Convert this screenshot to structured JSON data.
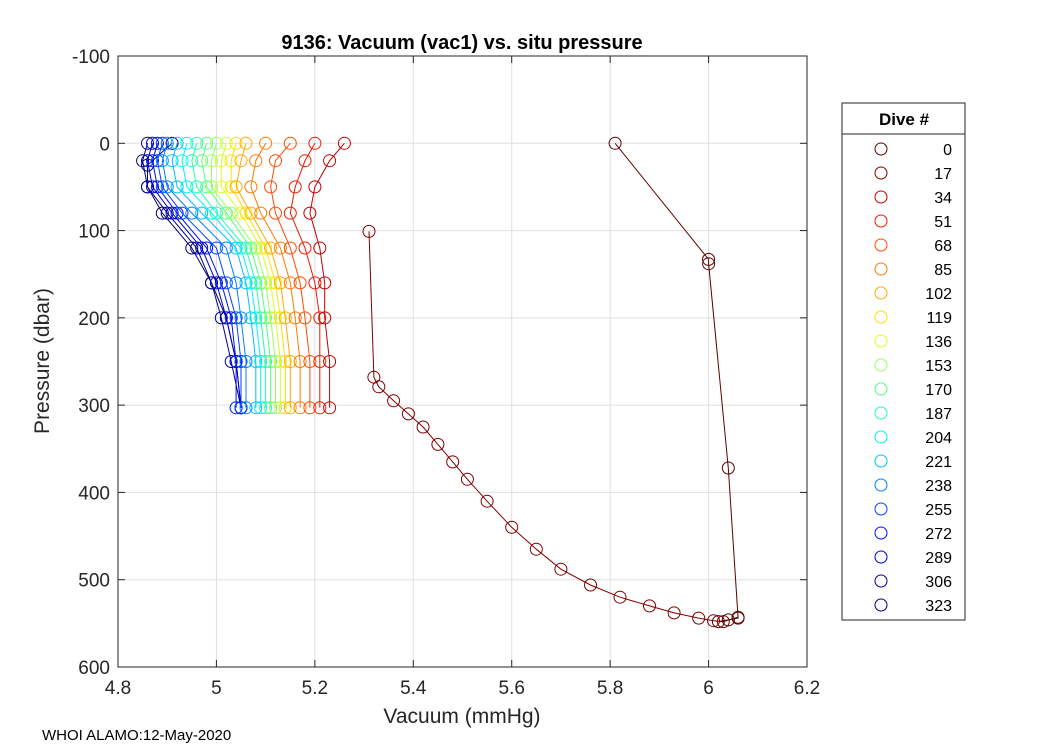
{
  "chart_data": {
    "type": "scatter",
    "title": "9136: Vacuum (vac1) vs. situ pressure",
    "xlabel": "Vacuum (mmHg)",
    "ylabel": "Pressure (dbar)",
    "xlim": [
      4.8,
      6.2
    ],
    "ylim": [
      -100,
      600
    ],
    "y_reversed": true,
    "grid": true,
    "xticks": [
      "4.8",
      "5",
      "5.2",
      "5.4",
      "5.6",
      "5.8",
      "6",
      "6.2"
    ],
    "yticks": [
      "-100",
      "0",
      "100",
      "200",
      "300",
      "400",
      "500",
      "600"
    ],
    "legend": {
      "title": "Dive #",
      "placement": "outside-right",
      "entries": [
        {
          "label": "0",
          "color": "#5a0000"
        },
        {
          "label": "17",
          "color": "#800000"
        },
        {
          "label": "34",
          "color": "#c00000"
        },
        {
          "label": "51",
          "color": "#ee1a00"
        },
        {
          "label": "68",
          "color": "#ff4a00"
        },
        {
          "label": "85",
          "color": "#ff7a00"
        },
        {
          "label": "102",
          "color": "#ffaa00"
        },
        {
          "label": "119",
          "color": "#ffe000"
        },
        {
          "label": "136",
          "color": "#d8ff20"
        },
        {
          "label": "153",
          "color": "#98ff60"
        },
        {
          "label": "170",
          "color": "#50ff80"
        },
        {
          "label": "187",
          "color": "#20ffb0"
        },
        {
          "label": "204",
          "color": "#00f0ff"
        },
        {
          "label": "221",
          "color": "#00c0ff"
        },
        {
          "label": "238",
          "color": "#0080ff"
        },
        {
          "label": "255",
          "color": "#0040ff"
        },
        {
          "label": "272",
          "color": "#0010f0"
        },
        {
          "label": "289",
          "color": "#0000c0"
        },
        {
          "label": "306",
          "color": "#000090"
        },
        {
          "label": "323",
          "color": "#000070"
        }
      ]
    },
    "series": [
      {
        "name": "0",
        "color": "#5a0000",
        "points": [
          [
            5.81,
            0
          ],
          [
            6.0,
            133
          ],
          [
            6.0,
            138
          ],
          [
            6.04,
            372
          ],
          [
            6.06,
            544
          ],
          [
            6.04,
            546
          ],
          [
            6.02,
            548
          ]
        ]
      },
      {
        "name": "17",
        "color": "#800000",
        "points": [
          [
            5.31,
            101
          ],
          [
            5.32,
            268
          ],
          [
            5.33,
            279
          ],
          [
            5.36,
            295
          ],
          [
            5.39,
            310
          ],
          [
            5.42,
            325
          ],
          [
            5.45,
            345
          ],
          [
            5.48,
            365
          ],
          [
            5.51,
            385
          ],
          [
            5.55,
            410
          ],
          [
            5.6,
            440
          ],
          [
            5.65,
            465
          ],
          [
            5.7,
            488
          ],
          [
            5.76,
            506
          ],
          [
            5.82,
            520
          ],
          [
            5.88,
            530
          ],
          [
            5.93,
            538
          ],
          [
            5.98,
            544
          ],
          [
            6.01,
            547
          ],
          [
            6.03,
            548
          ],
          [
            6.06,
            543
          ]
        ]
      },
      {
        "name": "34",
        "color": "#c00000",
        "points": [
          [
            5.26,
            0
          ],
          [
            5.23,
            20
          ],
          [
            5.2,
            50
          ],
          [
            5.19,
            80
          ],
          [
            5.21,
            120
          ],
          [
            5.22,
            160
          ],
          [
            5.22,
            200
          ],
          [
            5.23,
            250
          ],
          [
            5.23,
            303
          ]
        ]
      },
      {
        "name": "51",
        "color": "#ee1a00",
        "points": [
          [
            5.2,
            0
          ],
          [
            5.18,
            20
          ],
          [
            5.16,
            50
          ],
          [
            5.15,
            80
          ],
          [
            5.18,
            120
          ],
          [
            5.2,
            160
          ],
          [
            5.21,
            200
          ],
          [
            5.21,
            250
          ],
          [
            5.21,
            303
          ]
        ]
      },
      {
        "name": "68",
        "color": "#ff4a00",
        "points": [
          [
            5.15,
            0
          ],
          [
            5.12,
            20
          ],
          [
            5.11,
            50
          ],
          [
            5.12,
            80
          ],
          [
            5.15,
            120
          ],
          [
            5.17,
            160
          ],
          [
            5.18,
            200
          ],
          [
            5.19,
            250
          ],
          [
            5.19,
            303
          ]
        ]
      },
      {
        "name": "85",
        "color": "#ff7a00",
        "points": [
          [
            5.1,
            0
          ],
          [
            5.08,
            20
          ],
          [
            5.07,
            50
          ],
          [
            5.09,
            80
          ],
          [
            5.13,
            120
          ],
          [
            5.15,
            160
          ],
          [
            5.16,
            200
          ],
          [
            5.17,
            250
          ],
          [
            5.17,
            303
          ]
        ]
      },
      {
        "name": "102",
        "color": "#ffaa00",
        "points": [
          [
            5.06,
            0
          ],
          [
            5.05,
            20
          ],
          [
            5.04,
            50
          ],
          [
            5.07,
            80
          ],
          [
            5.11,
            120
          ],
          [
            5.13,
            160
          ],
          [
            5.14,
            200
          ],
          [
            5.15,
            250
          ],
          [
            5.15,
            303
          ]
        ]
      },
      {
        "name": "119",
        "color": "#ffe000",
        "points": [
          [
            5.04,
            0
          ],
          [
            5.03,
            20
          ],
          [
            5.03,
            50
          ],
          [
            5.06,
            80
          ],
          [
            5.1,
            120
          ],
          [
            5.12,
            160
          ],
          [
            5.13,
            200
          ],
          [
            5.14,
            250
          ],
          [
            5.14,
            303
          ]
        ]
      },
      {
        "name": "136",
        "color": "#d8ff20",
        "points": [
          [
            5.02,
            0
          ],
          [
            5.01,
            20
          ],
          [
            5.01,
            50
          ],
          [
            5.05,
            80
          ],
          [
            5.09,
            120
          ],
          [
            5.11,
            160
          ],
          [
            5.12,
            200
          ],
          [
            5.13,
            250
          ],
          [
            5.13,
            303
          ]
        ]
      },
      {
        "name": "153",
        "color": "#98ff60",
        "points": [
          [
            5.0,
            0
          ],
          [
            4.99,
            20
          ],
          [
            4.99,
            50
          ],
          [
            5.03,
            80
          ],
          [
            5.08,
            120
          ],
          [
            5.1,
            160
          ],
          [
            5.11,
            200
          ],
          [
            5.12,
            250
          ],
          [
            5.12,
            303
          ]
        ]
      },
      {
        "name": "170",
        "color": "#50ff80",
        "points": [
          [
            4.98,
            0
          ],
          [
            4.97,
            20
          ],
          [
            4.98,
            50
          ],
          [
            5.02,
            80
          ],
          [
            5.07,
            120
          ],
          [
            5.09,
            160
          ],
          [
            5.1,
            200
          ],
          [
            5.11,
            250
          ],
          [
            5.11,
            303
          ]
        ]
      },
      {
        "name": "187",
        "color": "#20ffb0",
        "points": [
          [
            4.96,
            0
          ],
          [
            4.95,
            20
          ],
          [
            4.96,
            50
          ],
          [
            5.0,
            80
          ],
          [
            5.06,
            120
          ],
          [
            5.08,
            160
          ],
          [
            5.09,
            200
          ],
          [
            5.1,
            250
          ],
          [
            5.1,
            303
          ]
        ]
      },
      {
        "name": "204",
        "color": "#00f0ff",
        "points": [
          [
            4.94,
            0
          ],
          [
            4.93,
            20
          ],
          [
            4.94,
            50
          ],
          [
            4.99,
            80
          ],
          [
            5.05,
            120
          ],
          [
            5.07,
            160
          ],
          [
            5.08,
            200
          ],
          [
            5.09,
            250
          ],
          [
            5.09,
            303
          ]
        ]
      },
      {
        "name": "221",
        "color": "#00c0ff",
        "points": [
          [
            4.92,
            0
          ],
          [
            4.91,
            20
          ],
          [
            4.92,
            50
          ],
          [
            4.97,
            80
          ],
          [
            5.04,
            120
          ],
          [
            5.06,
            160
          ],
          [
            5.07,
            200
          ],
          [
            5.08,
            250
          ],
          [
            5.08,
            303
          ]
        ]
      },
      {
        "name": "238",
        "color": "#0080ff",
        "points": [
          [
            4.9,
            0
          ],
          [
            4.89,
            20
          ],
          [
            4.9,
            50
          ],
          [
            4.95,
            80
          ],
          [
            5.02,
            120
          ],
          [
            5.04,
            160
          ],
          [
            5.05,
            200
          ],
          [
            5.06,
            250
          ],
          [
            5.06,
            303
          ]
        ]
      },
      {
        "name": "255",
        "color": "#0040ff",
        "points": [
          [
            4.89,
            0
          ],
          [
            4.88,
            20
          ],
          [
            4.89,
            50
          ],
          [
            4.93,
            80
          ],
          [
            5.0,
            120
          ],
          [
            5.02,
            160
          ],
          [
            5.04,
            200
          ],
          [
            5.05,
            250
          ],
          [
            5.05,
            303
          ]
        ]
      },
      {
        "name": "272",
        "color": "#0010f0",
        "points": [
          [
            4.88,
            0
          ],
          [
            4.87,
            20
          ],
          [
            4.88,
            50
          ],
          [
            4.92,
            80
          ],
          [
            4.98,
            120
          ],
          [
            5.01,
            160
          ],
          [
            5.03,
            200
          ],
          [
            5.04,
            250
          ],
          [
            5.04,
            303
          ]
        ]
      },
      {
        "name": "289",
        "color": "#0000c0",
        "points": [
          [
            4.87,
            0
          ],
          [
            4.86,
            20
          ],
          [
            4.87,
            50
          ],
          [
            4.91,
            80
          ],
          [
            4.97,
            120
          ],
          [
            5.0,
            160
          ],
          [
            5.02,
            200
          ],
          [
            5.04,
            250
          ],
          [
            5.05,
            303
          ]
        ]
      },
      {
        "name": "306",
        "color": "#000090",
        "points": [
          [
            4.86,
            0
          ],
          [
            4.85,
            20
          ],
          [
            4.86,
            50
          ],
          [
            4.9,
            80
          ],
          [
            4.96,
            120
          ],
          [
            4.99,
            160
          ],
          [
            5.01,
            200
          ],
          [
            5.03,
            250
          ],
          [
            5.05,
            303
          ]
        ]
      },
      {
        "name": "323",
        "color": "#000070",
        "points": [
          [
            4.91,
            0
          ],
          [
            4.86,
            25
          ],
          [
            4.86,
            50
          ],
          [
            4.89,
            80
          ],
          [
            4.95,
            120
          ],
          [
            4.99,
            160
          ],
          [
            5.02,
            200
          ],
          [
            5.04,
            250
          ],
          [
            5.05,
            303
          ]
        ]
      }
    ]
  },
  "footer": {
    "text": "WHOI ALAMO:12-May-2020"
  }
}
